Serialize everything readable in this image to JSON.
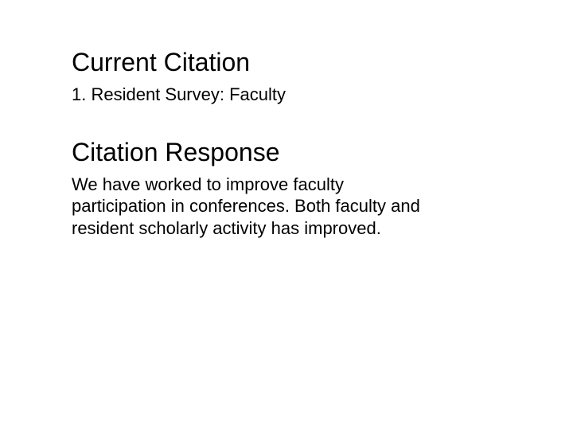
{
  "section1": {
    "heading": "Current Citation",
    "item": "1.  Resident Survey: Faculty"
  },
  "section2": {
    "heading": "Citation Response",
    "body": "We have worked to improve faculty participation in conferences. Both faculty and resident scholarly activity has improved."
  },
  "styling": {
    "background_color": "#ffffff",
    "text_color": "#000000",
    "heading_fontsize": 32,
    "body_fontsize": 22,
    "font_family": "Arial"
  }
}
